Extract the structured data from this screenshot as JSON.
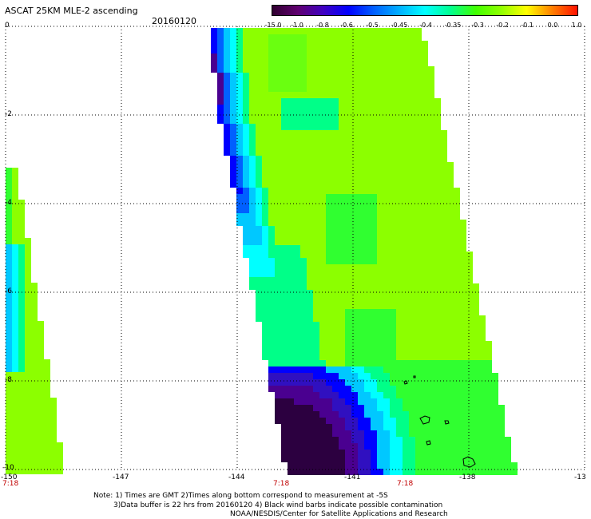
{
  "header": {
    "title": "ASCAT 25KM MLE-2 ascending",
    "date": "20160120"
  },
  "colorbar": {
    "labels": [
      "-15.0",
      "-1.0",
      "-0.8",
      "-0.6",
      "-0.5",
      "-0.45",
      "-0.4",
      "-0.35",
      "-0.3",
      "-0.2",
      "-0.1",
      "0.0",
      "1.0"
    ],
    "colors": [
      "#300030",
      "#600070",
      "#4000c0",
      "#0000ff",
      "#0060ff",
      "#00b0ff",
      "#00ffff",
      "#00ff90",
      "#40ff00",
      "#90ff00",
      "#ffff00",
      "#ff8000",
      "#ff1000"
    ]
  },
  "axes": {
    "x_ticks": [
      "-150",
      "-147",
      "-144",
      "-141",
      "-138",
      "-13"
    ],
    "y_ticks": [
      "0",
      "-2",
      "-4",
      "-6",
      "-8",
      "-10"
    ],
    "times": [
      "7:18",
      "7:18",
      "7:18"
    ]
  },
  "notes": {
    "line1": "Note: 1) Times are GMT 2)Times along bottom correspond to measurement at -5S",
    "line2": "3)Data buffer is 22 hrs from 20160120 4) Black wind barbs indicate possible contamination",
    "line3": "NOAA/NESDIS/Center for Satellite Applications and Research"
  },
  "colors": {
    "grid": "#000000",
    "time_label": "#c00000"
  }
}
